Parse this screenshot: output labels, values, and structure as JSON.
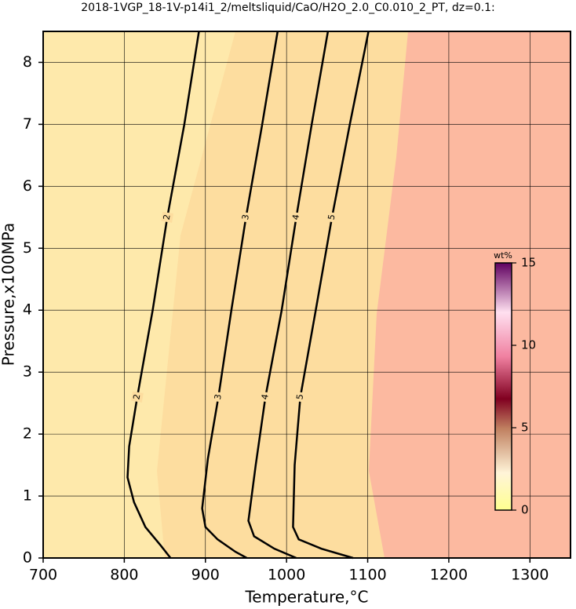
{
  "chart_data": {
    "type": "contour",
    "title": "2018-1VGP_18-1V-p14i1_2/meltsliquid/CaO/H2O_2.0_C0.010_2_PT, dz=0.1:",
    "x_label": "Temperature,°C",
    "y_label": "Pressure,x100MPa",
    "xlim": [
      700,
      1350
    ],
    "xticks": [
      700,
      800,
      900,
      1000,
      1100,
      1200,
      1300
    ],
    "ylim": [
      0,
      8.5
    ],
    "yticks": [
      0,
      1,
      2,
      3,
      4,
      5,
      6,
      7,
      8
    ],
    "grid": true,
    "series": [
      {
        "name": "2",
        "color": "#000000",
        "x": [
          892,
          874,
          853,
          835,
          816,
          806,
          804,
          812,
          826,
          845,
          857
        ],
        "y": [
          8.5,
          7,
          5.5,
          4,
          2.6,
          1.8,
          1.3,
          0.9,
          0.5,
          0.2,
          0
        ]
      },
      {
        "name": "3",
        "color": "#000000",
        "x": [
          989,
          970,
          950,
          932,
          916,
          903,
          896,
          900,
          915,
          937,
          951
        ],
        "y": [
          8.5,
          7,
          5.5,
          4,
          2.6,
          1.6,
          0.8,
          0.5,
          0.3,
          0.1,
          0
        ]
      },
      {
        "name": "4",
        "color": "#000000",
        "x": [
          1051,
          1031,
          1012,
          994,
          974,
          962,
          953,
          960,
          985,
          1012
        ],
        "y": [
          8.5,
          7,
          5.5,
          4,
          2.6,
          1.5,
          0.6,
          0.35,
          0.15,
          0
        ]
      },
      {
        "name": "5",
        "color": "#000000",
        "x": [
          1101,
          1078,
          1056,
          1036,
          1017,
          1010,
          1008,
          1015,
          1043,
          1082
        ],
        "y": [
          8.5,
          7,
          5.5,
          4,
          2.6,
          1.5,
          0.5,
          0.3,
          0.15,
          0
        ]
      }
    ],
    "colorbar": {
      "label": "wt%",
      "lim": [
        0,
        15
      ],
      "ticks": [
        0,
        5,
        10,
        15
      ]
    }
  }
}
